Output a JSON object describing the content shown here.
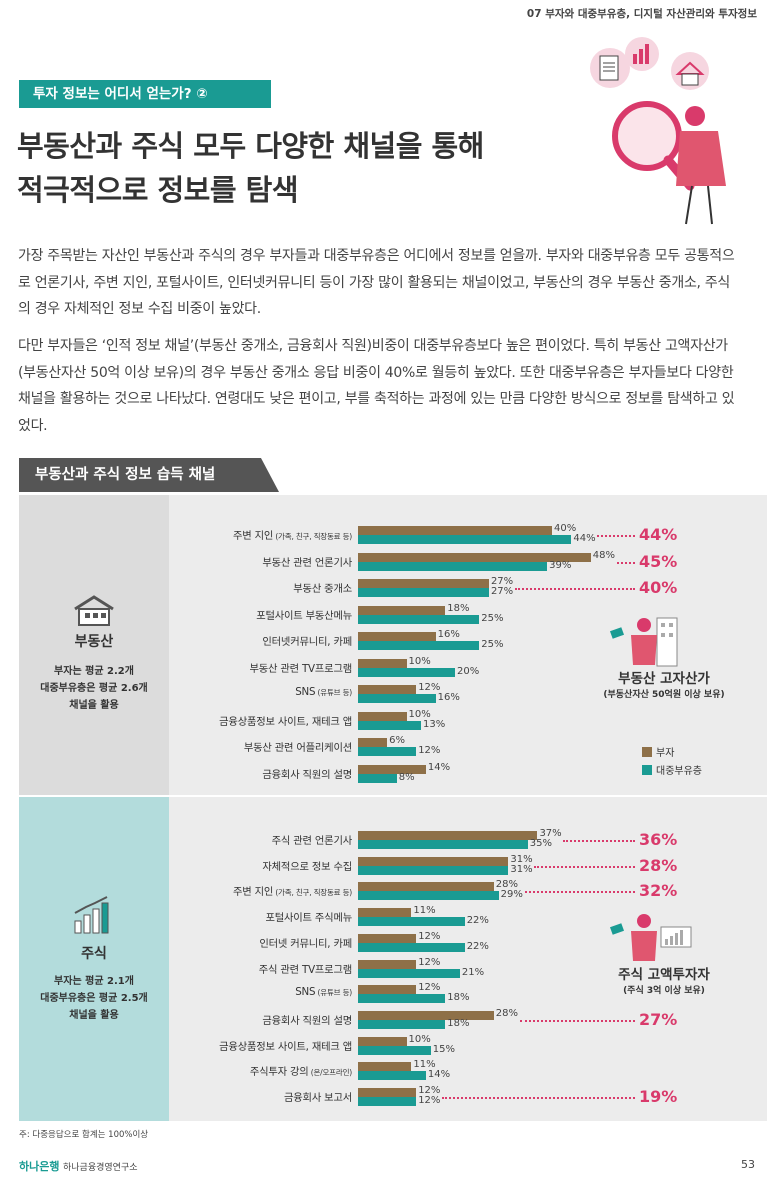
{
  "header": {
    "chapter": "07 부자와 대중부유층, 디지털 자산관리와 투자정보"
  },
  "tag": "투자 정보는 어디서 얻는가? ②",
  "title_line1": "부동산과 주식 모두 다양한 채널을 통해",
  "title_line2": "적극적으로 정보를 탐색",
  "para1": "가장 주목받는 자산인 부동산과 주식의 경우 부자들과 대중부유층은 어디에서 정보를 얻을까. 부자와 대중부유층 모두 공통적으로 언론기사, 주변 지인, 포털사이트, 인터넷커뮤니티 등이 가장 많이 활용되는 채널이었고, 부동산의 경우 부동산 중개소, 주식의 경우 자체적인 정보 수집 비중이 높았다.",
  "para2": "다만 부자들은 ‘인적 정보 채널’(부동산 중개소, 금융회사 직원)비중이 대중부유층보다 높은 편이었다. 특히 부동산 고액자산가(부동산자산 50억 이상 보유)의 경우 부동산 중개소 응답 비중이 40%로 월등히 높았다. 또한 대중부유층은 부자들보다 다양한 채널을 활용하는 것으로 나타났다. 연령대도 낮은 편이고, 부를 축적하는 과정에 있는 만큼 다양한 방식으로 정보를 탐색하고 있었다.",
  "section_title": "부동산과 주식 정보 습득 채널",
  "colors": {
    "rich": "#8e7048",
    "mass": "#1a9b93",
    "accent": "#d93a6b",
    "teal": "#1a9b93"
  },
  "legend": {
    "rich": "부자",
    "mass": "대중부유층"
  },
  "note": "주: 다중응답으로 합계는 100%이상",
  "footer": {
    "logo": "하나은행",
    "institute": "하나금융경영연구소",
    "page": "53"
  },
  "chart_data": [
    {
      "type": "bar",
      "title": "부동산",
      "side_desc": [
        "부자는 평균 2.2개",
        "대중부유층은 평균 2.6개",
        "채널을 활용"
      ],
      "insight": {
        "title": "부동산 고자산가",
        "subtitle": "(부동산자산 50억원 이상 보유)"
      },
      "categories": [
        {
          "main": "주변 지인",
          "sub": "(가족, 친구, 직장동료 등)"
        },
        {
          "main": "부동산 관련 언론기사",
          "sub": ""
        },
        {
          "main": "부동산 중개소",
          "sub": ""
        },
        {
          "main": "포털사이트 부동산메뉴",
          "sub": ""
        },
        {
          "main": "인터넷커뮤니티, 카페",
          "sub": ""
        },
        {
          "main": "부동산 관련 TV프로그램",
          "sub": ""
        },
        {
          "main": "SNS",
          "sub": "(유튜브 등)"
        },
        {
          "main": "금융상품정보 사이트, 재테크 앱",
          "sub": ""
        },
        {
          "main": "부동산 관련 어플리케이션",
          "sub": ""
        },
        {
          "main": "금융회사 직원의 설명",
          "sub": ""
        }
      ],
      "series": [
        {
          "name": "부자",
          "values": [
            40,
            48,
            27,
            18,
            16,
            10,
            12,
            10,
            6,
            14
          ]
        },
        {
          "name": "대중부유층",
          "values": [
            44,
            39,
            27,
            25,
            25,
            20,
            16,
            13,
            12,
            8
          ]
        }
      ],
      "highlight": [
        {
          "index": 0,
          "label": "44%"
        },
        {
          "index": 1,
          "label": "45%"
        },
        {
          "index": 2,
          "label": "40%"
        }
      ]
    },
    {
      "type": "bar",
      "title": "주식",
      "side_desc": [
        "부자는 평균 2.1개",
        "대중부유층은 평균 2.5개",
        "채널을 활용"
      ],
      "insight": {
        "title": "주식 고액투자자",
        "subtitle": "(주식 3억 이상 보유)"
      },
      "categories": [
        {
          "main": "주식 관련 언론기사",
          "sub": ""
        },
        {
          "main": "자체적으로 정보 수집",
          "sub": ""
        },
        {
          "main": "주변 지인",
          "sub": "(가족, 친구, 직장동료 등)"
        },
        {
          "main": "포털사이트 주식메뉴",
          "sub": ""
        },
        {
          "main": "인터넷 커뮤니티, 카페",
          "sub": ""
        },
        {
          "main": "주식 관련 TV프로그램",
          "sub": ""
        },
        {
          "main": "SNS",
          "sub": "(유튜브 등)"
        },
        {
          "main": "금융회사 직원의 설명",
          "sub": ""
        },
        {
          "main": "금융상품정보 사이트, 재테크 앱",
          "sub": ""
        },
        {
          "main": "주식투자 강의",
          "sub": "(온/오프라인)"
        },
        {
          "main": "금융회사 보고서",
          "sub": ""
        }
      ],
      "series": [
        {
          "name": "부자",
          "values": [
            37,
            31,
            28,
            11,
            12,
            12,
            12,
            28,
            10,
            11,
            12
          ]
        },
        {
          "name": "대중부유층",
          "values": [
            35,
            31,
            29,
            22,
            22,
            21,
            18,
            18,
            15,
            14,
            12
          ]
        }
      ],
      "highlight": [
        {
          "index": 0,
          "label": "36%"
        },
        {
          "index": 1,
          "label": "28%"
        },
        {
          "index": 2,
          "label": "32%"
        },
        {
          "index": 7,
          "label": "27%"
        },
        {
          "index": 10,
          "label": "19%"
        }
      ]
    }
  ]
}
